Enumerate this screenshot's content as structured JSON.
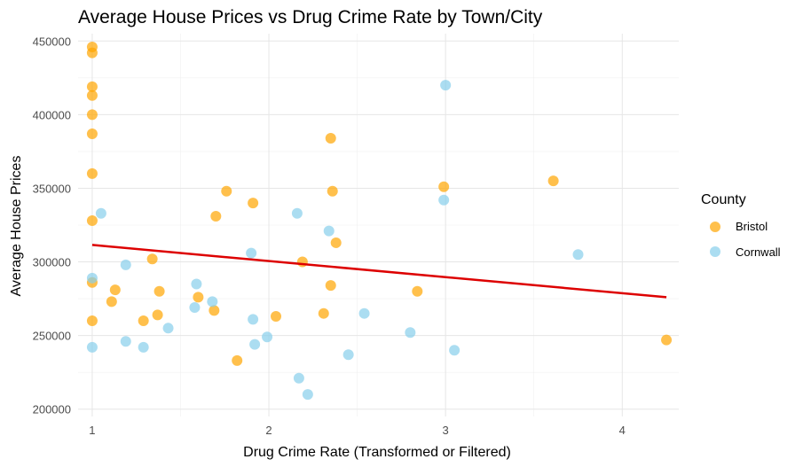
{
  "chart_data": {
    "type": "scatter",
    "title": "Average House Prices vs Drug Crime Rate by Town/City",
    "xlabel": "Drug Crime Rate (Transformed or Filtered)",
    "ylabel": "Average House Prices",
    "xlim": [
      0.92,
      4.32
    ],
    "ylim": [
      195000,
      455000
    ],
    "x_ticks": [
      1,
      2,
      3,
      4
    ],
    "y_ticks": [
      200000,
      250000,
      300000,
      350000,
      400000,
      450000
    ],
    "x_tick_labels": [
      "1",
      "2",
      "3",
      "4"
    ],
    "y_tick_labels": [
      "200000",
      "250000",
      "300000",
      "350000",
      "400000",
      "450000"
    ],
    "grid": true,
    "legend": {
      "title": "County",
      "position": "right"
    },
    "series": [
      {
        "name": "Bristol",
        "color": "#ffa500",
        "points": [
          [
            1.0,
            446000
          ],
          [
            1.0,
            442000
          ],
          [
            1.0,
            419000
          ],
          [
            1.0,
            413000
          ],
          [
            1.0,
            400000
          ],
          [
            1.0,
            387000
          ],
          [
            1.0,
            360000
          ],
          [
            1.0,
            328000
          ],
          [
            1.0,
            286000
          ],
          [
            1.0,
            260000
          ],
          [
            1.11,
            273000
          ],
          [
            1.13,
            281000
          ],
          [
            1.29,
            260000
          ],
          [
            1.34,
            302000
          ],
          [
            1.37,
            264000
          ],
          [
            1.38,
            280000
          ],
          [
            1.6,
            276000
          ],
          [
            1.69,
            267000
          ],
          [
            1.7,
            331000
          ],
          [
            1.76,
            348000
          ],
          [
            1.82,
            233000
          ],
          [
            1.91,
            340000
          ],
          [
            2.04,
            263000
          ],
          [
            2.19,
            300000
          ],
          [
            2.31,
            265000
          ],
          [
            2.35,
            284000
          ],
          [
            2.35,
            384000
          ],
          [
            2.36,
            348000
          ],
          [
            2.38,
            313000
          ],
          [
            2.84,
            280000
          ],
          [
            2.99,
            351000
          ],
          [
            3.61,
            355000
          ],
          [
            4.25,
            247000
          ]
        ]
      },
      {
        "name": "Cornwall",
        "color": "#87ceeb",
        "points": [
          [
            1.0,
            289000
          ],
          [
            1.0,
            242000
          ],
          [
            1.05,
            333000
          ],
          [
            1.19,
            246000
          ],
          [
            1.19,
            298000
          ],
          [
            1.29,
            242000
          ],
          [
            1.43,
            255000
          ],
          [
            1.58,
            269000
          ],
          [
            1.59,
            285000
          ],
          [
            1.68,
            273000
          ],
          [
            1.9,
            306000
          ],
          [
            1.91,
            261000
          ],
          [
            1.92,
            244000
          ],
          [
            1.99,
            249000
          ],
          [
            2.16,
            333000
          ],
          [
            2.17,
            221000
          ],
          [
            2.22,
            210000
          ],
          [
            2.34,
            321000
          ],
          [
            2.45,
            237000
          ],
          [
            2.54,
            265000
          ],
          [
            2.8,
            252000
          ],
          [
            2.99,
            342000
          ],
          [
            3.0,
            420000
          ],
          [
            3.05,
            240000
          ],
          [
            3.75,
            305000
          ]
        ]
      }
    ],
    "trendline": {
      "color": "#dd0000",
      "x": [
        1.0,
        4.25
      ],
      "y": [
        311500,
        276000
      ]
    }
  }
}
